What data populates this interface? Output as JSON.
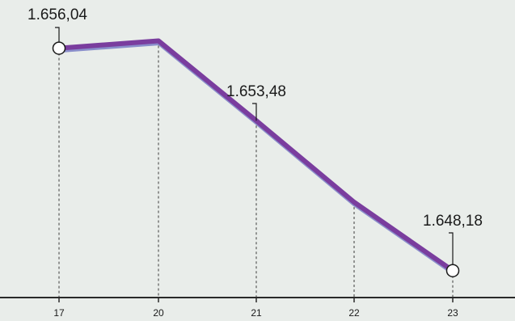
{
  "chart_data": {
    "type": "line",
    "title": "",
    "xlabel": "",
    "ylabel": "",
    "categories": [
      "17",
      "20",
      "21",
      "22",
      "23"
    ],
    "values": [
      1656.04,
      1656.3,
      1653.48,
      1650.6,
      1648.18
    ],
    "ylim": [
      1647,
      1657
    ],
    "data_labels": [
      {
        "index": 0,
        "text": "1.656,04"
      },
      {
        "index": 2,
        "text": "1.653,48"
      },
      {
        "index": 4,
        "text": "1.648,18"
      }
    ],
    "end_markers": "open-circle",
    "grid": "dashed vertical guides at each category",
    "line_color": "#7a3d9e",
    "legend": "none"
  }
}
